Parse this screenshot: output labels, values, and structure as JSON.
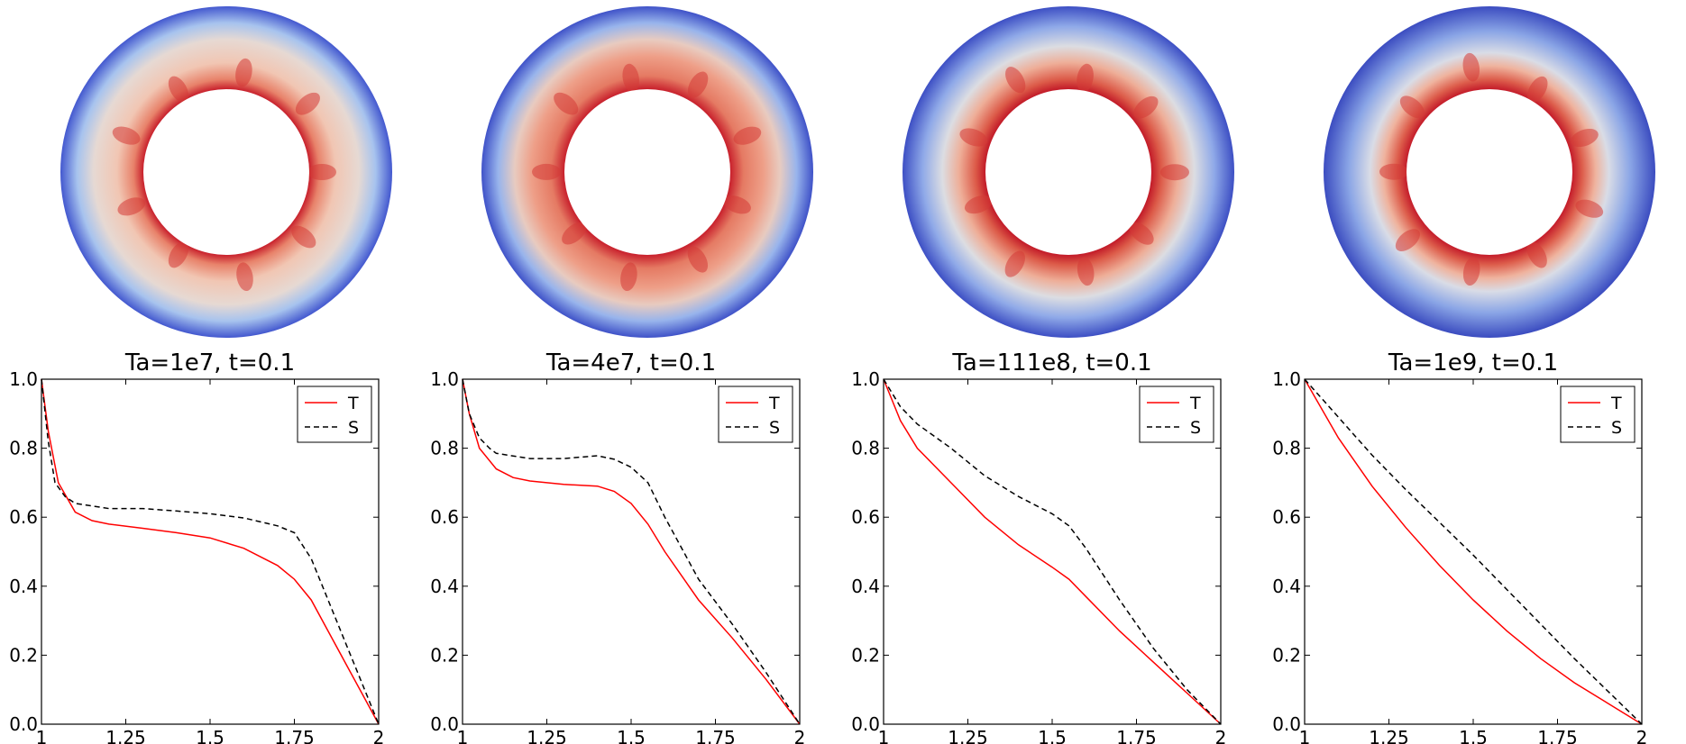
{
  "colors": {
    "temperature_line": "#ff0000",
    "salinity_line": "#000000",
    "cold_outer": "#3b4cc0",
    "mid": "#dddddd",
    "hot_inner": "#c8202c"
  },
  "chart_data": [
    {
      "type": "line",
      "title": "Ta=1e7, t=0.1",
      "xlim": [
        1,
        2
      ],
      "ylim": [
        0,
        1
      ],
      "xticks": [
        "1",
        "1.25",
        "1.5",
        "1.75",
        "2"
      ],
      "yticks": [
        "0.0",
        "0.2",
        "0.4",
        "0.6",
        "0.8",
        "1.0"
      ],
      "legend": {
        "position": "top-right",
        "entries": [
          "T",
          "S"
        ]
      },
      "snapshot": "annulus colour field, cellular plumes, weak warm interior",
      "series": [
        {
          "name": "T",
          "style": "solid",
          "x": [
            1,
            1.02,
            1.05,
            1.1,
            1.15,
            1.2,
            1.3,
            1.4,
            1.5,
            1.6,
            1.7,
            1.75,
            1.8,
            1.85,
            1.9,
            1.95,
            2
          ],
          "y": [
            1.0,
            0.85,
            0.7,
            0.615,
            0.59,
            0.58,
            0.568,
            0.555,
            0.54,
            0.51,
            0.46,
            0.42,
            0.36,
            0.27,
            0.18,
            0.09,
            0.0
          ]
        },
        {
          "name": "S",
          "style": "dashed",
          "x": [
            1,
            1.02,
            1.04,
            1.07,
            1.1,
            1.2,
            1.3,
            1.4,
            1.5,
            1.6,
            1.7,
            1.75,
            1.8,
            1.85,
            1.9,
            1.95,
            2
          ],
          "y": [
            1.0,
            0.82,
            0.7,
            0.66,
            0.64,
            0.625,
            0.625,
            0.618,
            0.61,
            0.598,
            0.575,
            0.555,
            0.48,
            0.36,
            0.24,
            0.12,
            0.0
          ]
        }
      ]
    },
    {
      "type": "line",
      "title": "Ta=4e7, t=0.1",
      "xlim": [
        1,
        2
      ],
      "ylim": [
        0,
        1
      ],
      "xticks": [
        "1",
        "1.25",
        "1.5",
        "1.75",
        "2"
      ],
      "yticks": [
        "0.0",
        "0.2",
        "0.4",
        "0.6",
        "0.8",
        "1.0"
      ],
      "legend": {
        "position": "top-right",
        "entries": [
          "T",
          "S"
        ]
      },
      "snapshot": "annulus colour field, strong warm interior band",
      "series": [
        {
          "name": "T",
          "style": "solid",
          "x": [
            1,
            1.02,
            1.05,
            1.1,
            1.15,
            1.2,
            1.3,
            1.4,
            1.45,
            1.5,
            1.55,
            1.6,
            1.7,
            1.8,
            1.9,
            2
          ],
          "y": [
            1.0,
            0.9,
            0.8,
            0.74,
            0.715,
            0.705,
            0.695,
            0.69,
            0.675,
            0.64,
            0.58,
            0.5,
            0.36,
            0.25,
            0.13,
            0.0
          ]
        },
        {
          "name": "S",
          "style": "dashed",
          "x": [
            1,
            1.02,
            1.05,
            1.08,
            1.1,
            1.2,
            1.3,
            1.4,
            1.45,
            1.5,
            1.55,
            1.6,
            1.7,
            1.8,
            1.9,
            2
          ],
          "y": [
            1.0,
            0.9,
            0.83,
            0.8,
            0.785,
            0.77,
            0.77,
            0.778,
            0.768,
            0.745,
            0.7,
            0.6,
            0.42,
            0.29,
            0.15,
            0.0
          ]
        }
      ]
    },
    {
      "type": "line",
      "title": "Ta=111e8, t=0.1",
      "xlim": [
        1,
        2
      ],
      "ylim": [
        0,
        1
      ],
      "xticks": [
        "1",
        "1.25",
        "1.5",
        "1.75",
        "2"
      ],
      "yticks": [
        "0.0",
        "0.2",
        "0.4",
        "0.6",
        "0.8",
        "1.0"
      ],
      "legend": {
        "position": "top-right",
        "entries": [
          "T",
          "S"
        ]
      },
      "snapshot": "annulus colour field, warm layer hugging inner wall",
      "series": [
        {
          "name": "T",
          "style": "solid",
          "x": [
            1,
            1.05,
            1.1,
            1.2,
            1.3,
            1.4,
            1.5,
            1.55,
            1.6,
            1.7,
            1.8,
            1.9,
            2
          ],
          "y": [
            1.0,
            0.88,
            0.8,
            0.7,
            0.6,
            0.52,
            0.455,
            0.42,
            0.37,
            0.27,
            0.18,
            0.09,
            0.0
          ]
        },
        {
          "name": "S",
          "style": "dashed",
          "x": [
            1,
            1.05,
            1.1,
            1.2,
            1.3,
            1.4,
            1.5,
            1.55,
            1.6,
            1.7,
            1.8,
            1.9,
            2
          ],
          "y": [
            1.0,
            0.92,
            0.87,
            0.8,
            0.72,
            0.66,
            0.61,
            0.575,
            0.51,
            0.36,
            0.22,
            0.1,
            0.0
          ]
        }
      ]
    },
    {
      "type": "line",
      "title": "Ta=1e9, t=0.1",
      "xlim": [
        1,
        2
      ],
      "ylim": [
        0,
        1
      ],
      "xticks": [
        "1",
        "1.25",
        "1.5",
        "1.75",
        "2"
      ],
      "yticks": [
        "0.0",
        "0.2",
        "0.4",
        "0.6",
        "0.8",
        "1.0"
      ],
      "legend": {
        "position": "top-right",
        "entries": [
          "T",
          "S"
        ]
      },
      "snapshot": "annulus colour field, thin warm ring near inner wall",
      "series": [
        {
          "name": "T",
          "style": "solid",
          "x": [
            1,
            1.1,
            1.2,
            1.3,
            1.4,
            1.5,
            1.6,
            1.7,
            1.8,
            1.9,
            2
          ],
          "y": [
            1.0,
            0.83,
            0.69,
            0.57,
            0.46,
            0.36,
            0.27,
            0.19,
            0.12,
            0.06,
            0.0
          ]
        },
        {
          "name": "S",
          "style": "dashed",
          "x": [
            1,
            1.1,
            1.2,
            1.3,
            1.4,
            1.5,
            1.6,
            1.7,
            1.8,
            1.9,
            2
          ],
          "y": [
            1.0,
            0.89,
            0.78,
            0.68,
            0.585,
            0.49,
            0.39,
            0.29,
            0.19,
            0.095,
            0.0
          ]
        }
      ]
    }
  ]
}
